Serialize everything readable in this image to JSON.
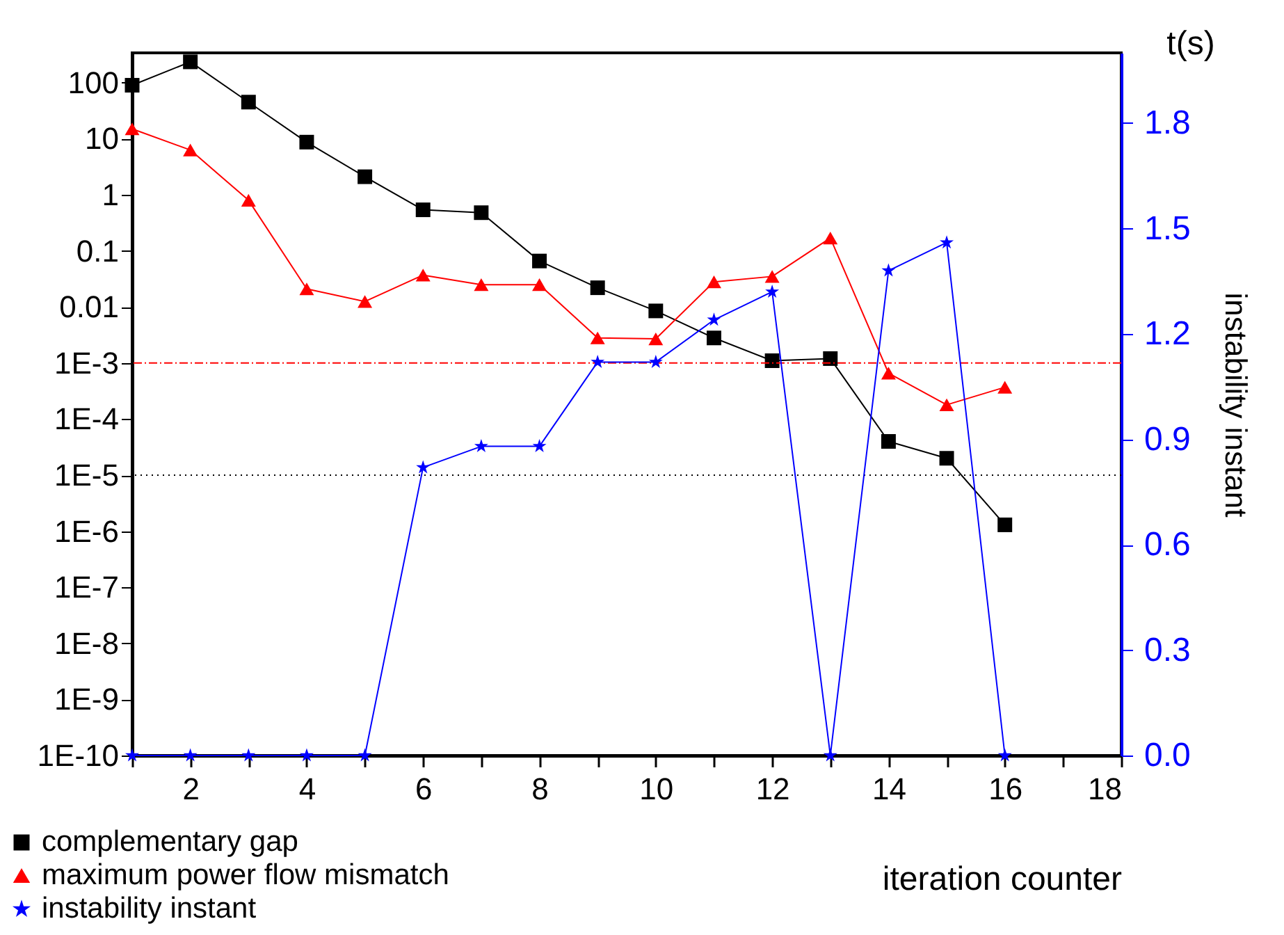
{
  "chart_data": {
    "type": "line",
    "xlabel": "iteration counter",
    "y2label": "instability instant",
    "annotations": [
      "t(s)"
    ],
    "x": [
      1,
      2,
      3,
      4,
      5,
      6,
      7,
      8,
      9,
      10,
      11,
      12,
      13,
      14,
      15,
      16
    ],
    "xlim": [
      1,
      18
    ],
    "xticks": [
      {
        "value": 1,
        "label": null
      },
      2,
      {
        "value": 3,
        "label": null
      },
      4,
      {
        "value": 5,
        "label": null
      },
      6,
      {
        "value": 7,
        "label": null
      },
      8,
      {
        "value": 9,
        "label": null
      },
      10,
      {
        "value": 11,
        "label": null
      },
      12,
      {
        "value": 13,
        "label": null
      },
      14,
      {
        "value": 15,
        "label": null
      },
      16,
      {
        "value": 17,
        "label": null
      },
      18
    ],
    "log": "y",
    "ylim": [
      1e-10,
      340
    ],
    "yticks": [
      {
        "value": 1e-10,
        "label": "1E-10"
      },
      {
        "value": 1e-09,
        "label": "1E-9"
      },
      {
        "value": 1e-08,
        "label": "1E-8"
      },
      {
        "value": 1e-07,
        "label": "1E-7"
      },
      {
        "value": 1e-06,
        "label": "1E-6"
      },
      {
        "value": 1e-05,
        "label": "1E-5"
      },
      {
        "value": 0.0001,
        "label": "1E-4"
      },
      {
        "value": 0.001,
        "label": "1E-3"
      },
      0.01,
      0.1,
      1,
      10,
      100
    ],
    "y2lim": [
      0,
      2
    ],
    "y2ticks": [
      {
        "value": 0,
        "label": "0.0"
      },
      0.3,
      0.6,
      0.9,
      1.2,
      1.5,
      1.8
    ],
    "legend": "bottom left",
    "ref_lines": [
      {
        "axis": "y",
        "value": 0.001,
        "color": "#ff0000",
        "line_style": "dashed"
      },
      {
        "axis": "y",
        "value": 1e-05,
        "color": "#000000",
        "line_style": "dotted"
      }
    ],
    "series": [
      {
        "name": "complementary gap",
        "color": "#000000",
        "marker": "square",
        "values": [
          90,
          235,
          45,
          8.7,
          2.1,
          0.54,
          0.48,
          0.066,
          0.022,
          0.0085,
          0.0028,
          0.0011,
          0.0012,
          4e-05,
          2e-05,
          1.3e-06
        ]
      },
      {
        "name": "maximum power flow mismatch",
        "color": "#ff0000",
        "marker": "triangle",
        "values": [
          15,
          6.3,
          0.8,
          0.021,
          0.0125,
          0.037,
          0.025,
          0.025,
          0.0028,
          0.0027,
          0.028,
          0.035,
          0.17,
          0.00066,
          0.00018,
          0.00037
        ]
      },
      {
        "name": "instability instant",
        "color": "#0000ff",
        "marker": "star",
        "axis": "y2",
        "values": [
          0,
          0,
          0,
          0,
          0,
          0.82,
          0.88,
          0.88,
          1.12,
          1.12,
          1.24,
          1.32,
          0,
          1.38,
          1.46,
          0
        ]
      }
    ]
  }
}
